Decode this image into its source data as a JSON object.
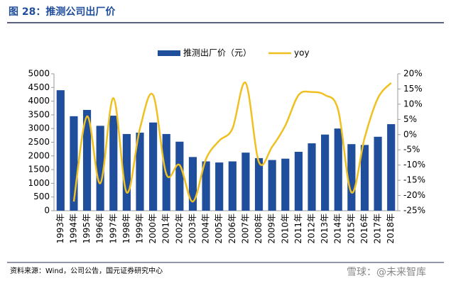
{
  "title": "图 28：推测公司出厂价",
  "source": "资料来源：Wind，公司公告，国元证券研究中心",
  "watermark": "雪球：@未来智库",
  "chart_data": {
    "type": "bar-line",
    "categories": [
      "1993年",
      "1994年",
      "1995年",
      "1996年",
      "1997年",
      "1998年",
      "1999年",
      "2000年",
      "2001年",
      "2002年",
      "2003年",
      "2004年",
      "2005年",
      "2006年",
      "2007年",
      "2008年",
      "2009年",
      "2010年",
      "2011年",
      "2012年",
      "2013年",
      "2014年",
      "2015年",
      "2016年",
      "2017年",
      "2018年"
    ],
    "series": [
      {
        "name": "推测出厂价（元）",
        "type": "bar",
        "color": "#1f4e9c",
        "values": [
          4400,
          3450,
          3680,
          3100,
          3470,
          2800,
          2850,
          3220,
          2800,
          2520,
          1960,
          1800,
          1760,
          1800,
          2120,
          1920,
          1850,
          1900,
          2150,
          2460,
          2780,
          3000,
          2430,
          2400,
          2700,
          3160
        ]
      },
      {
        "name": "yoy",
        "type": "line",
        "axis": "y2",
        "color": "#f0c020",
        "values": [
          null,
          -22,
          6,
          -16,
          12,
          -19,
          2,
          13,
          -13,
          -10,
          -22,
          -8,
          -2,
          2,
          17,
          -9,
          -4,
          3,
          13,
          14,
          13,
          8,
          -19,
          -1,
          12,
          17
        ]
      }
    ],
    "ylim": [
      0,
      5000
    ],
    "yticks": [
      0,
      500,
      1000,
      1500,
      2000,
      2500,
      3000,
      3500,
      4000,
      4500,
      5000
    ],
    "y2lim": [
      -25,
      20
    ],
    "y2ticks": [
      {
        "value": -25,
        "label": "-25%"
      },
      {
        "value": -20,
        "label": "-20%"
      },
      {
        "value": -15,
        "label": "-15%"
      },
      {
        "value": -10,
        "label": "-10%"
      },
      {
        "value": -5,
        "label": "-5%"
      },
      {
        "value": 0,
        "label": "0%"
      },
      {
        "value": 5,
        "label": "5%"
      },
      {
        "value": 10,
        "label": "10%"
      },
      {
        "value": 15,
        "label": "15%"
      },
      {
        "value": 20,
        "label": "20%"
      }
    ],
    "legend": "top"
  }
}
